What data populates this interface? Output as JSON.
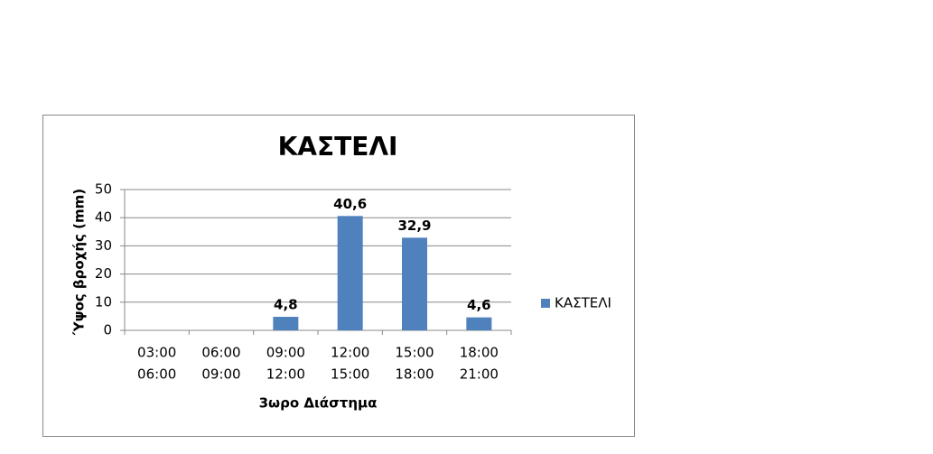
{
  "chart_data": {
    "type": "bar",
    "title": "ΚΑΣΤΕΛΙ",
    "x_label": "3ωρο Διάστημα",
    "y_label": "Ύψος βροχής (mm)",
    "categories": [
      [
        "03:00",
        "06:00"
      ],
      [
        "06:00",
        "09:00"
      ],
      [
        "09:00",
        "12:00"
      ],
      [
        "12:00",
        "15:00"
      ],
      [
        "15:00",
        "18:00"
      ],
      [
        "18:00",
        "21:00"
      ]
    ],
    "series": [
      {
        "name": "ΚΑΣΤΕΛΙ",
        "color": "#4f81bd",
        "values": [
          null,
          null,
          4.8,
          40.6,
          32.9,
          4.6
        ],
        "value_labels": [
          null,
          null,
          "4,8",
          "40,6",
          "32,9",
          "4,6"
        ]
      }
    ],
    "ylim": [
      0,
      50
    ],
    "yticks": [
      0,
      10,
      20,
      30,
      40,
      50
    ],
    "grid": true,
    "legend": "right"
  }
}
